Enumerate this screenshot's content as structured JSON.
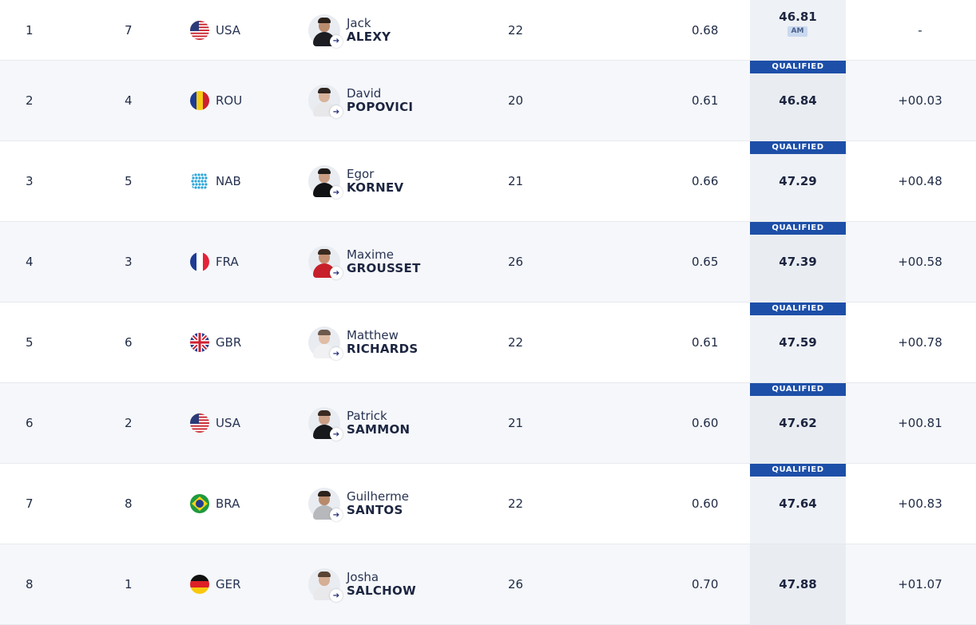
{
  "results": [
    {
      "rank": "1",
      "lane": "7",
      "country": "USA",
      "flag": "usa",
      "first": "Jack",
      "last": "ALEXY",
      "age": "22",
      "reaction": "0.68",
      "time": "46.81",
      "tag": "AM",
      "qualified": "",
      "diff": "-",
      "skin": "#b98c6e",
      "hair": "#2b211b",
      "jersey": "#1b1d22"
    },
    {
      "rank": "2",
      "lane": "4",
      "country": "ROU",
      "flag": "rou",
      "first": "David",
      "last": "POPOVICI",
      "age": "20",
      "reaction": "0.61",
      "time": "46.84",
      "tag": "",
      "qualified": "QUALIFIED",
      "diff": "+00.03",
      "skin": "#d8b39a",
      "hair": "#2f2520",
      "jersey": "#e8e8ea"
    },
    {
      "rank": "3",
      "lane": "5",
      "country": "NAB",
      "flag": "nab",
      "first": "Egor",
      "last": "KORNEV",
      "age": "21",
      "reaction": "0.66",
      "time": "47.29",
      "tag": "",
      "qualified": "QUALIFIED",
      "diff": "+00.48",
      "skin": "#c99d82",
      "hair": "#1e1a17",
      "jersey": "#111214"
    },
    {
      "rank": "4",
      "lane": "3",
      "country": "FRA",
      "flag": "fra",
      "first": "Maxime",
      "last": "GROUSSET",
      "age": "26",
      "reaction": "0.65",
      "time": "47.39",
      "tag": "",
      "qualified": "QUALIFIED",
      "diff": "+00.58",
      "skin": "#c48e70",
      "hair": "#3b2a20",
      "jersey": "#c8202a"
    },
    {
      "rank": "5",
      "lane": "6",
      "country": "GBR",
      "flag": "gbr",
      "first": "Matthew",
      "last": "RICHARDS",
      "age": "22",
      "reaction": "0.61",
      "time": "47.59",
      "tag": "",
      "qualified": "QUALIFIED",
      "diff": "+00.78",
      "skin": "#e0bda6",
      "hair": "#6e5a4c",
      "jersey": "#f1f1f3"
    },
    {
      "rank": "6",
      "lane": "2",
      "country": "USA",
      "flag": "usa",
      "first": "Patrick",
      "last": "SAMMON",
      "age": "21",
      "reaction": "0.60",
      "time": "47.62",
      "tag": "",
      "qualified": "QUALIFIED",
      "diff": "+00.81",
      "skin": "#caa087",
      "hair": "#3a2a21",
      "jersey": "#17191d"
    },
    {
      "rank": "7",
      "lane": "8",
      "country": "BRA",
      "flag": "bra",
      "first": "Guilherme",
      "last": "SANTOS",
      "age": "22",
      "reaction": "0.60",
      "time": "47.64",
      "tag": "",
      "qualified": "QUALIFIED",
      "diff": "+00.83",
      "skin": "#b88a6c",
      "hair": "#2c221c",
      "jersey": "#b6b8bc"
    },
    {
      "rank": "8",
      "lane": "1",
      "country": "GER",
      "flag": "ger",
      "first": "Josha",
      "last": "SALCHOW",
      "age": "26",
      "reaction": "0.70",
      "time": "47.88",
      "tag": "",
      "qualified": "",
      "diff": "+01.07",
      "skin": "#d6ae94",
      "hair": "#5a4334",
      "jersey": "#e9e9ec"
    }
  ],
  "colors": {
    "badge": "#1d4fa8",
    "text": "#1c2540",
    "row_alt": "#f5f7fa"
  },
  "icons": {
    "athlete_link": "arrow-right-icon"
  }
}
